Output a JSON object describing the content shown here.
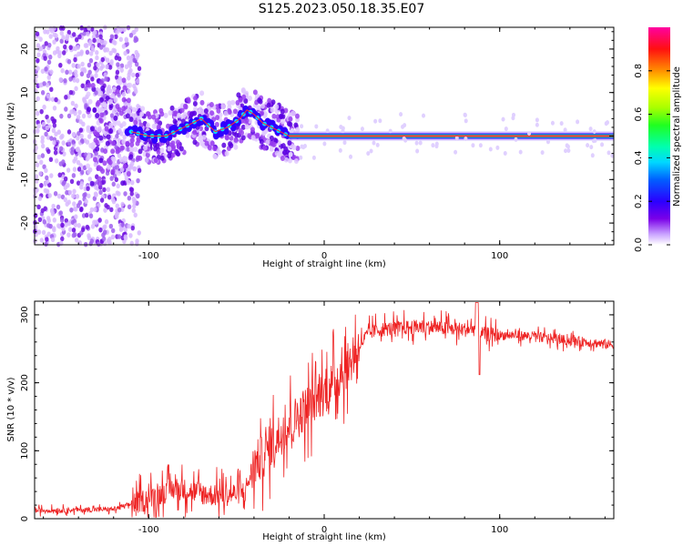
{
  "title": "S125.2023.050.18.35.E07",
  "colors": {
    "snr_line": "#ee2222",
    "axis": "#000000"
  },
  "chart_data": [
    {
      "type": "heatmap",
      "xlabel": "Height of straight line (km)",
      "ylabel": "Frequency (Hz)",
      "xlim": [
        -165,
        165
      ],
      "ylim": [
        -25,
        25
      ],
      "x_ticks": [
        -100,
        0,
        100
      ],
      "y_ticks": [
        -20,
        -10,
        0,
        10,
        20
      ],
      "colorbar": {
        "label": "Normalized spectral amplitude",
        "range": [
          0,
          1
        ],
        "ticks": [
          "0.0",
          "0.2",
          "0.4",
          "0.6",
          "0.8"
        ],
        "colormap": "gist_ncar_like"
      },
      "ridge": {
        "x": [
          -110,
          -100,
          -90,
          -80,
          -70,
          -62,
          -55,
          -48,
          -44,
          -40,
          -35,
          -30,
          -25,
          -20,
          -10,
          0,
          50,
          100,
          165
        ],
        "y": [
          1,
          0,
          0,
          2,
          4,
          1,
          2,
          4,
          6,
          5,
          3,
          2,
          1,
          0,
          0,
          0,
          0,
          0,
          0
        ]
      }
    },
    {
      "type": "line",
      "xlabel": "Height of straight line (km)",
      "ylabel": "SNR (10 * v/v)",
      "xlim": [
        -165,
        165
      ],
      "ylim": [
        0,
        320
      ],
      "x_ticks": [
        -100,
        0,
        100
      ],
      "y_ticks": [
        0,
        100,
        200,
        300
      ],
      "series": [
        {
          "x": [
            -165,
            -140,
            -120,
            -105,
            -95,
            -85,
            -75,
            -65,
            -55,
            -45,
            -40,
            -35,
            -30,
            -25,
            -20,
            -15,
            -10,
            -5,
            0,
            5,
            10,
            15,
            20,
            25,
            30,
            40,
            50,
            60,
            70,
            80,
            88,
            90,
            100,
            110,
            120,
            130,
            140,
            150,
            160,
            165
          ],
          "y": [
            12,
            13,
            14,
            25,
            35,
            45,
            40,
            35,
            35,
            40,
            80,
            90,
            110,
            125,
            140,
            150,
            165,
            175,
            185,
            200,
            215,
            230,
            255,
            272,
            278,
            280,
            282,
            282,
            280,
            278,
            280,
            272,
            270,
            270,
            268,
            265,
            262,
            260,
            257,
            255
          ]
        }
      ]
    }
  ]
}
